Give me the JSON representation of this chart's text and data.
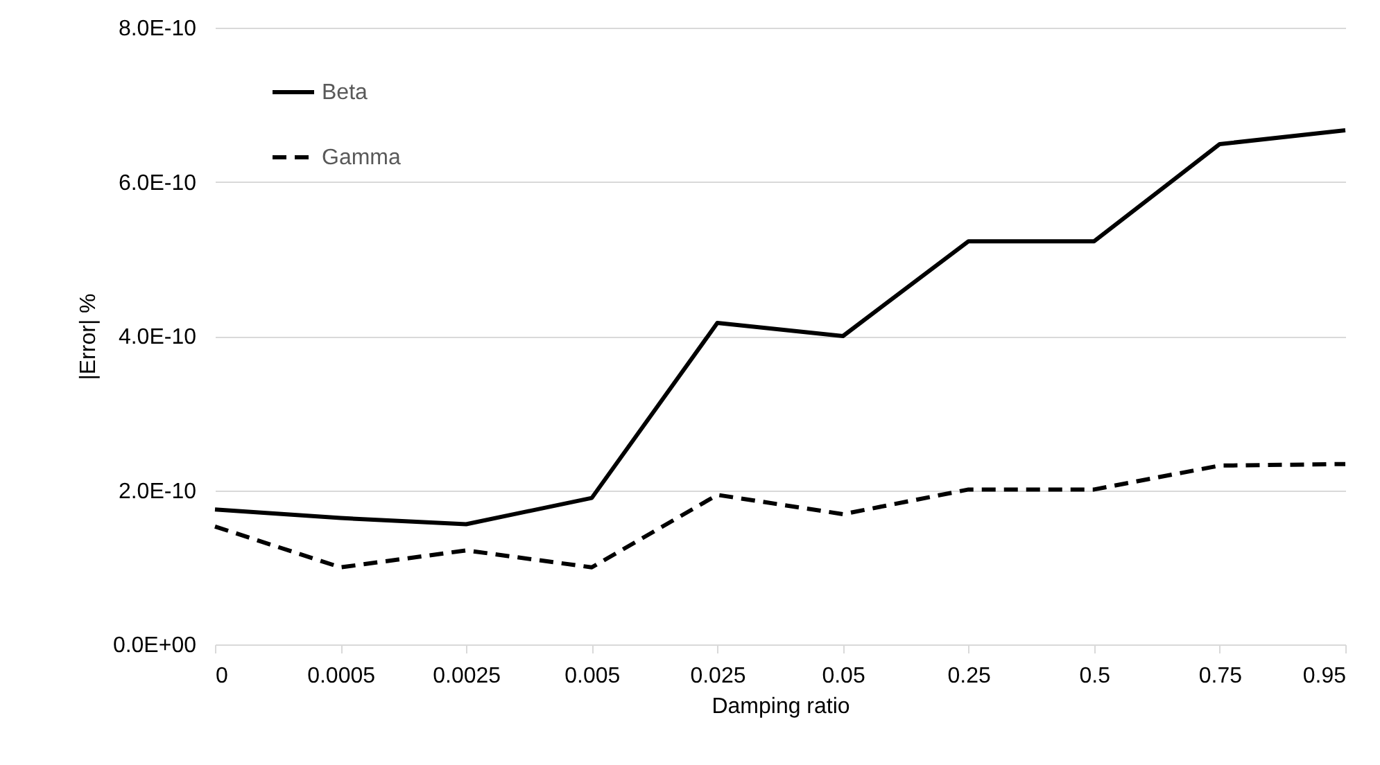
{
  "chart_data": {
    "type": "line",
    "xlabel": "Damping ratio",
    "ylabel": "|Error| %",
    "categories": [
      "0",
      "0.0005",
      "0.0025",
      "0.005",
      "0.025",
      "0.05",
      "0.25",
      "0.5",
      "0.75",
      "0.95"
    ],
    "series": [
      {
        "name": "Beta",
        "color": "#000000",
        "line_style": "solid",
        "values": [
          1.75e-10,
          1.64e-10,
          1.56e-10,
          1.9e-10,
          4.17e-10,
          4e-10,
          5.23e-10,
          5.23e-10,
          6.49e-10,
          6.67e-10
        ]
      },
      {
        "name": "Gamma",
        "color": "#000000",
        "line_style": "dashed",
        "values": [
          1.53e-10,
          1e-10,
          1.22e-10,
          1e-10,
          1.94e-10,
          1.69e-10,
          2.01e-10,
          2.01e-10,
          2.32e-10,
          2.34e-10
        ]
      }
    ],
    "ylim": [
      0,
      8e-10
    ],
    "yticks": [
      {
        "value": 0,
        "label": "0.0E+00"
      },
      {
        "value": 2e-10,
        "label": "2.0E-10"
      },
      {
        "value": 4e-10,
        "label": "4.0E-10"
      },
      {
        "value": 6e-10,
        "label": "6.0E-10"
      },
      {
        "value": 8e-10,
        "label": "8.0E-10"
      }
    ],
    "grid": "y",
    "legend": "top left",
    "marker": "none"
  }
}
